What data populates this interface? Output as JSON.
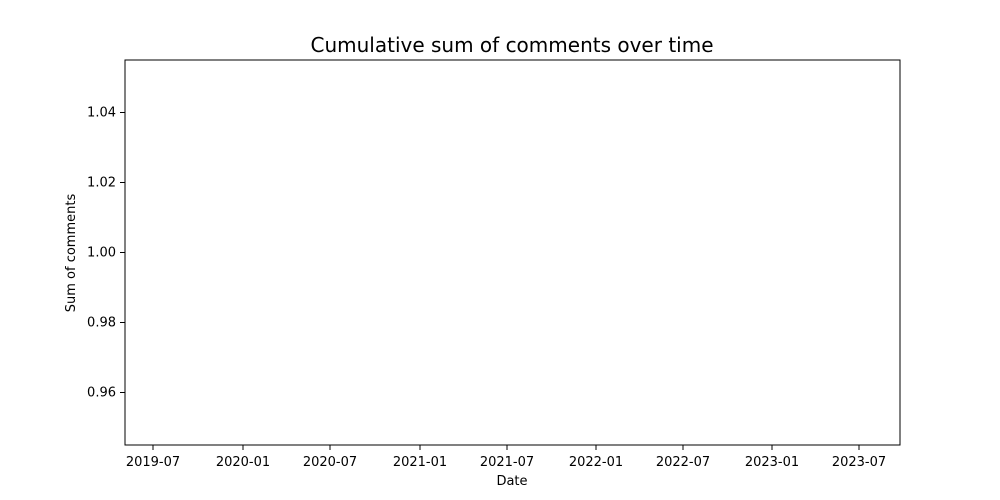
{
  "chart_data": {
    "type": "line",
    "title": "Cumulative sum of comments over time",
    "xlabel": "Date",
    "ylabel": "Sum of comments",
    "x_ticks": [
      "2019-07",
      "2020-01",
      "2020-07",
      "2021-01",
      "2021-07",
      "2022-01",
      "2022-07",
      "2023-01",
      "2023-07"
    ],
    "y_ticks": [
      "0.96",
      "0.98",
      "1.00",
      "1.02",
      "1.04"
    ],
    "y_tick_values": [
      0.96,
      0.98,
      1.0,
      1.02,
      1.04
    ],
    "ylim": [
      0.945,
      1.055
    ],
    "series": [],
    "grid": false
  },
  "colors": {
    "axis": "#000000",
    "background": "#ffffff"
  }
}
